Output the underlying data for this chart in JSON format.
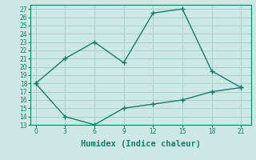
{
  "xlabel": "Humidex (Indice chaleur)",
  "x_upper": [
    0,
    3,
    6,
    9,
    12,
    15,
    18,
    21
  ],
  "y_upper": [
    18,
    21,
    23,
    20.5,
    26.5,
    27,
    19.5,
    17.5
  ],
  "x_lower": [
    0,
    3,
    6,
    9,
    12,
    15,
    18,
    21
  ],
  "y_lower": [
    18,
    14,
    13,
    15,
    15.5,
    16,
    17,
    17.5
  ],
  "line_color": "#1a7a6e",
  "bg_color": "#cce8e5",
  "grid_color": "#aacfcc",
  "xlim": [
    -0.5,
    22
  ],
  "ylim": [
    13,
    27.5
  ],
  "xticks": [
    0,
    3,
    6,
    9,
    12,
    15,
    18,
    21
  ],
  "yticks": [
    13,
    14,
    15,
    16,
    17,
    18,
    19,
    20,
    21,
    22,
    23,
    24,
    25,
    26,
    27
  ],
  "tick_fontsize": 5.5,
  "label_fontsize": 7.5
}
